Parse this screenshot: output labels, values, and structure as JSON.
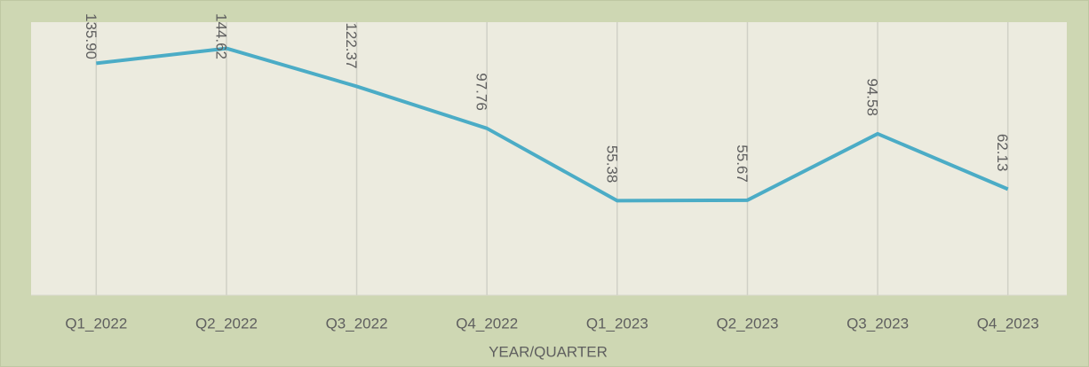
{
  "chart_data": {
    "type": "line",
    "x_label": "YEAR/QUARTER",
    "categories": [
      "Q1_2022",
      "Q2_2022",
      "Q3_2022",
      "Q4_2022",
      "Q1_2023",
      "Q2_2023",
      "Q3_2023",
      "Q4_2023"
    ],
    "values": [
      135.9,
      144.62,
      122.37,
      97.76,
      55.38,
      55.67,
      94.58,
      62.13
    ],
    "value_labels": [
      "135.90",
      "144.62",
      "122.37",
      "97.76",
      "55.38",
      "55.67",
      "94.58",
      "62.13"
    ],
    "color": "#4bacc6",
    "ylim": [
      0,
      160
    ],
    "grid": true
  }
}
